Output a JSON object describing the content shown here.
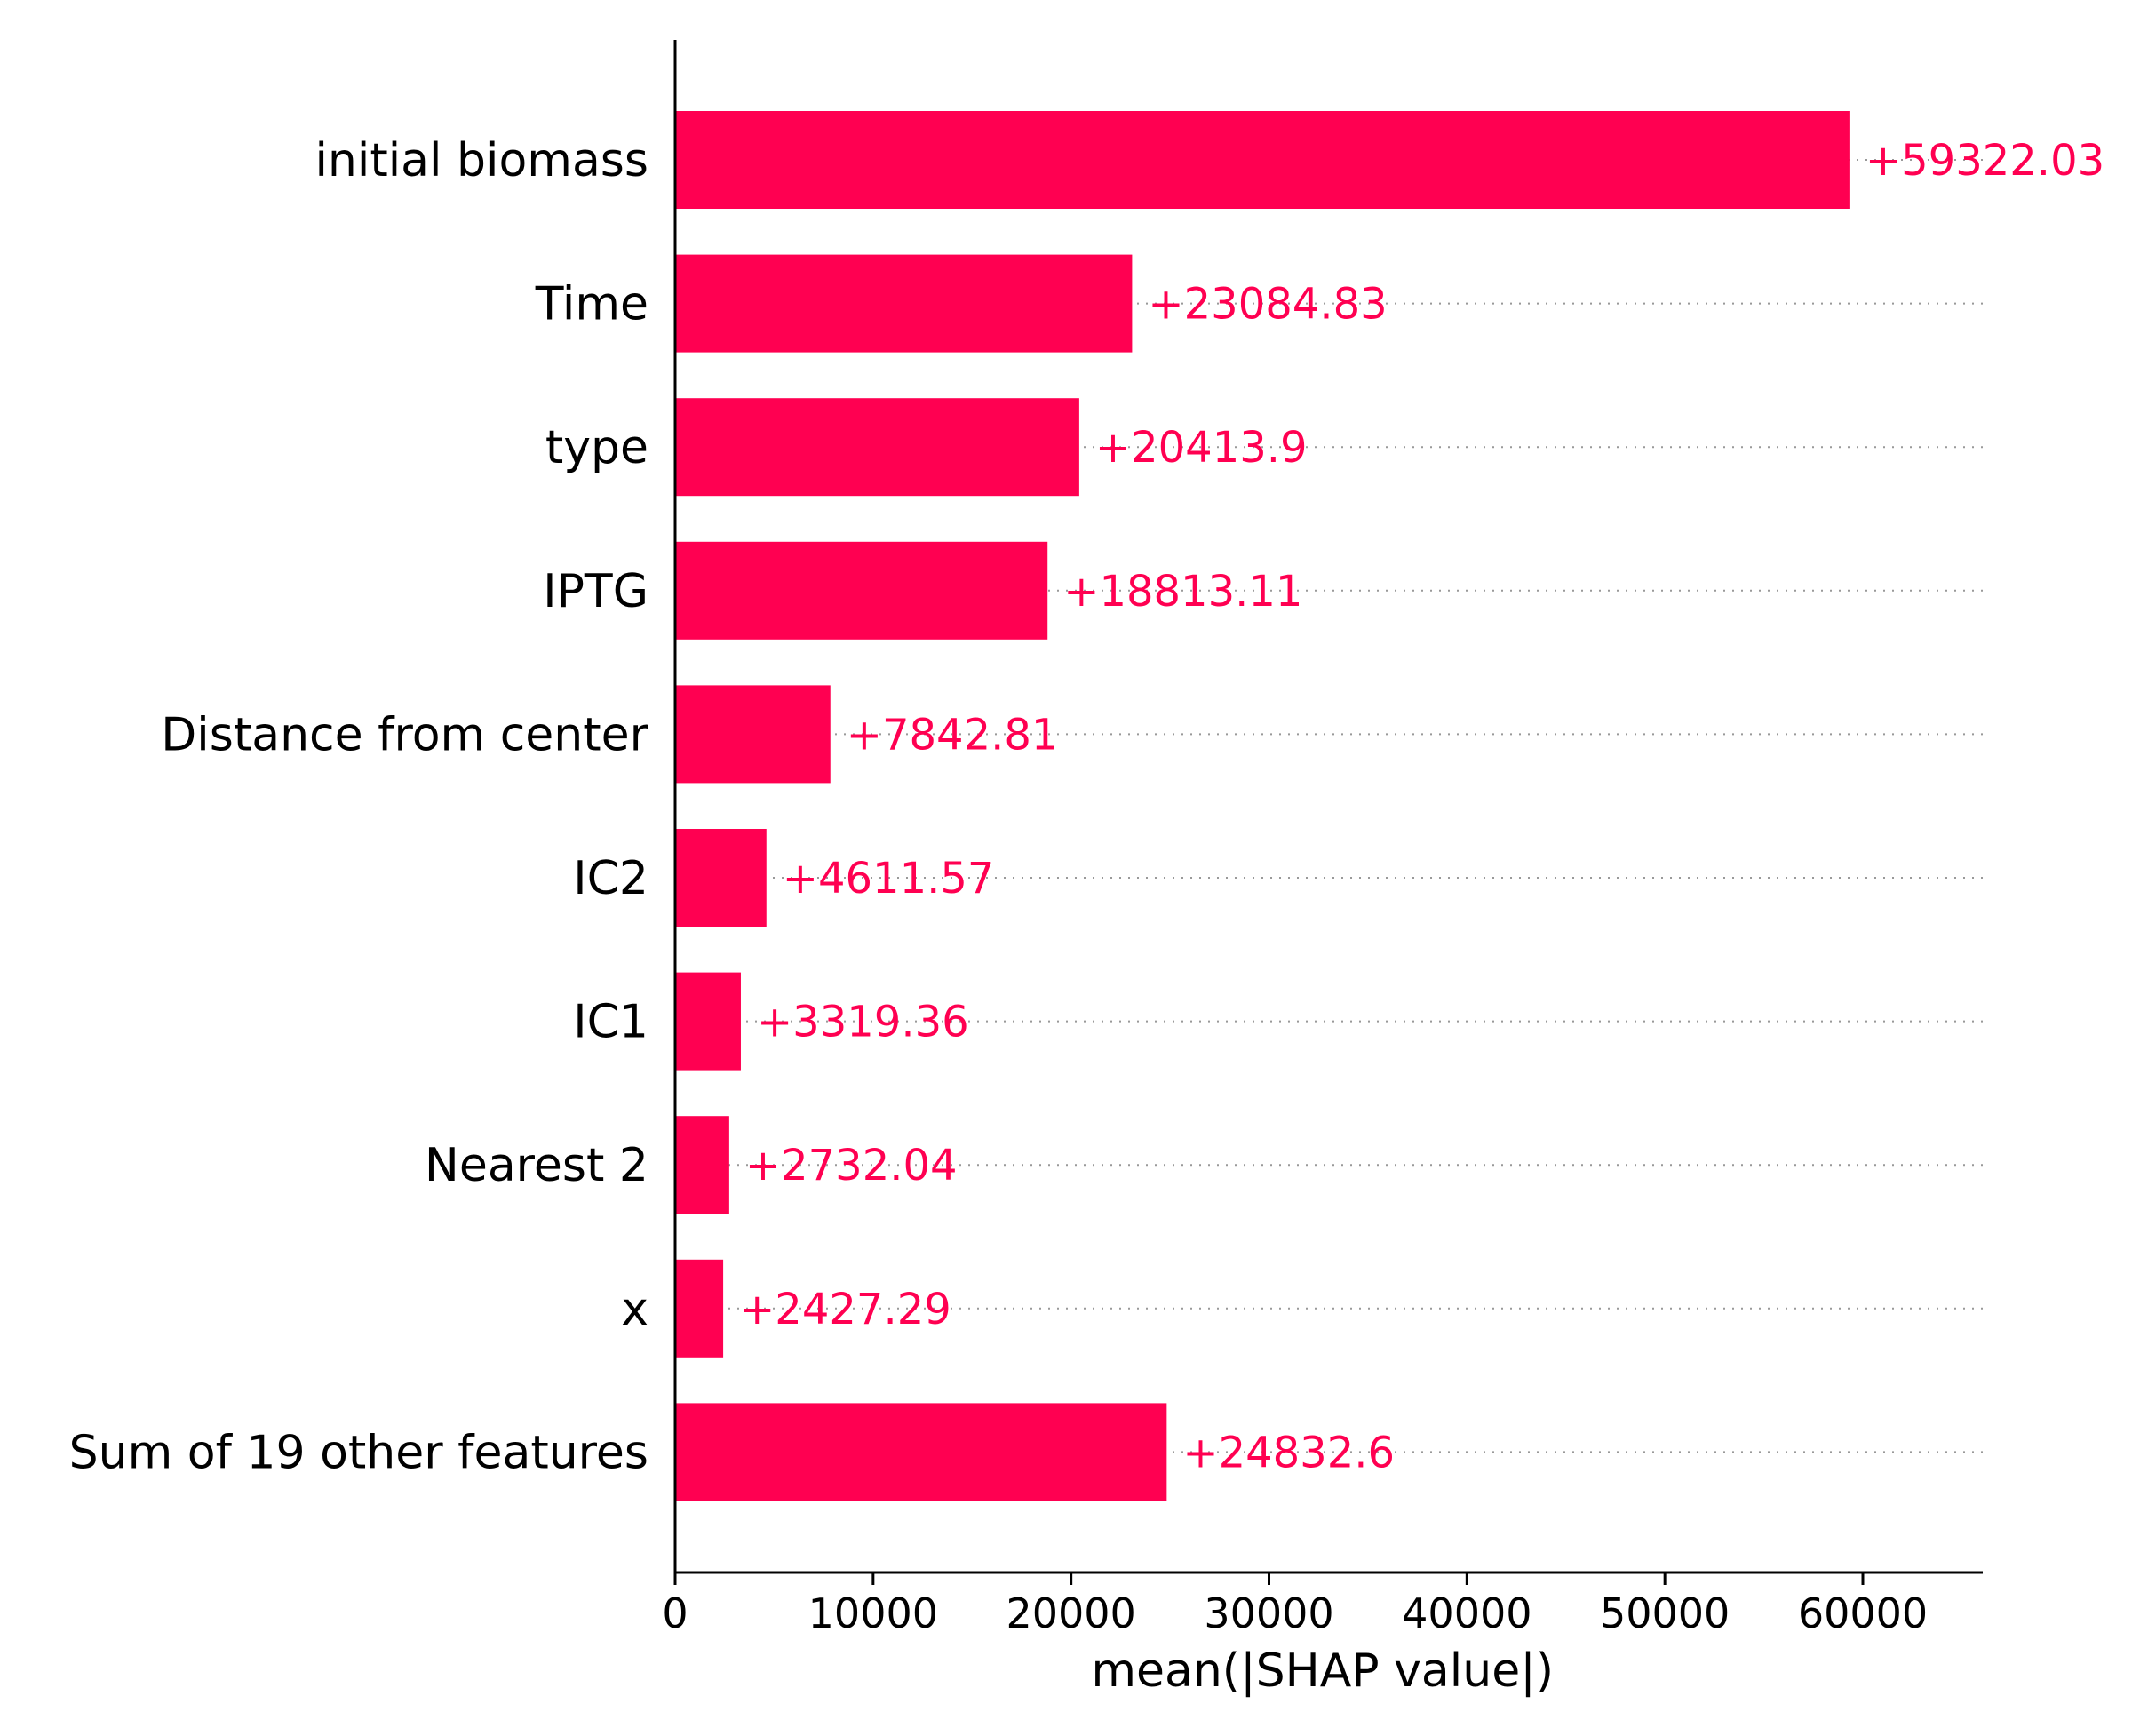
{
  "chart_data": {
    "type": "bar",
    "orientation": "horizontal",
    "categories": [
      "initial biomass",
      "Time",
      "type",
      "IPTG",
      "Distance from center",
      "IC2",
      "IC1",
      "Nearest 2",
      "x",
      "Sum of 19 other features"
    ],
    "values": [
      59322.03,
      23084.83,
      20413.9,
      18813.11,
      7842.81,
      4611.57,
      3319.36,
      2732.04,
      2427.29,
      24832.6
    ],
    "value_labels": [
      "+59322.03",
      "+23084.83",
      "+20413.9",
      "+18813.11",
      "+7842.81",
      "+4611.57",
      "+3319.36",
      "+2732.04",
      "+2427.29",
      "+24832.6"
    ],
    "xlabel": "mean(|SHAP value|)",
    "ylabel": "",
    "title": "",
    "xlim": [
      0,
      65500
    ],
    "xticks": [
      0,
      10000,
      20000,
      30000,
      40000,
      50000,
      60000
    ],
    "xtick_labels": [
      "0",
      "10000",
      "20000",
      "30000",
      "40000",
      "50000",
      "60000"
    ],
    "grid": "dotted horizontal guide lines per bar",
    "legend": "none",
    "colors": {
      "bar": "#ff0051",
      "value_text": "#ff0051",
      "axis": "#000000",
      "guide": "#999999"
    }
  }
}
